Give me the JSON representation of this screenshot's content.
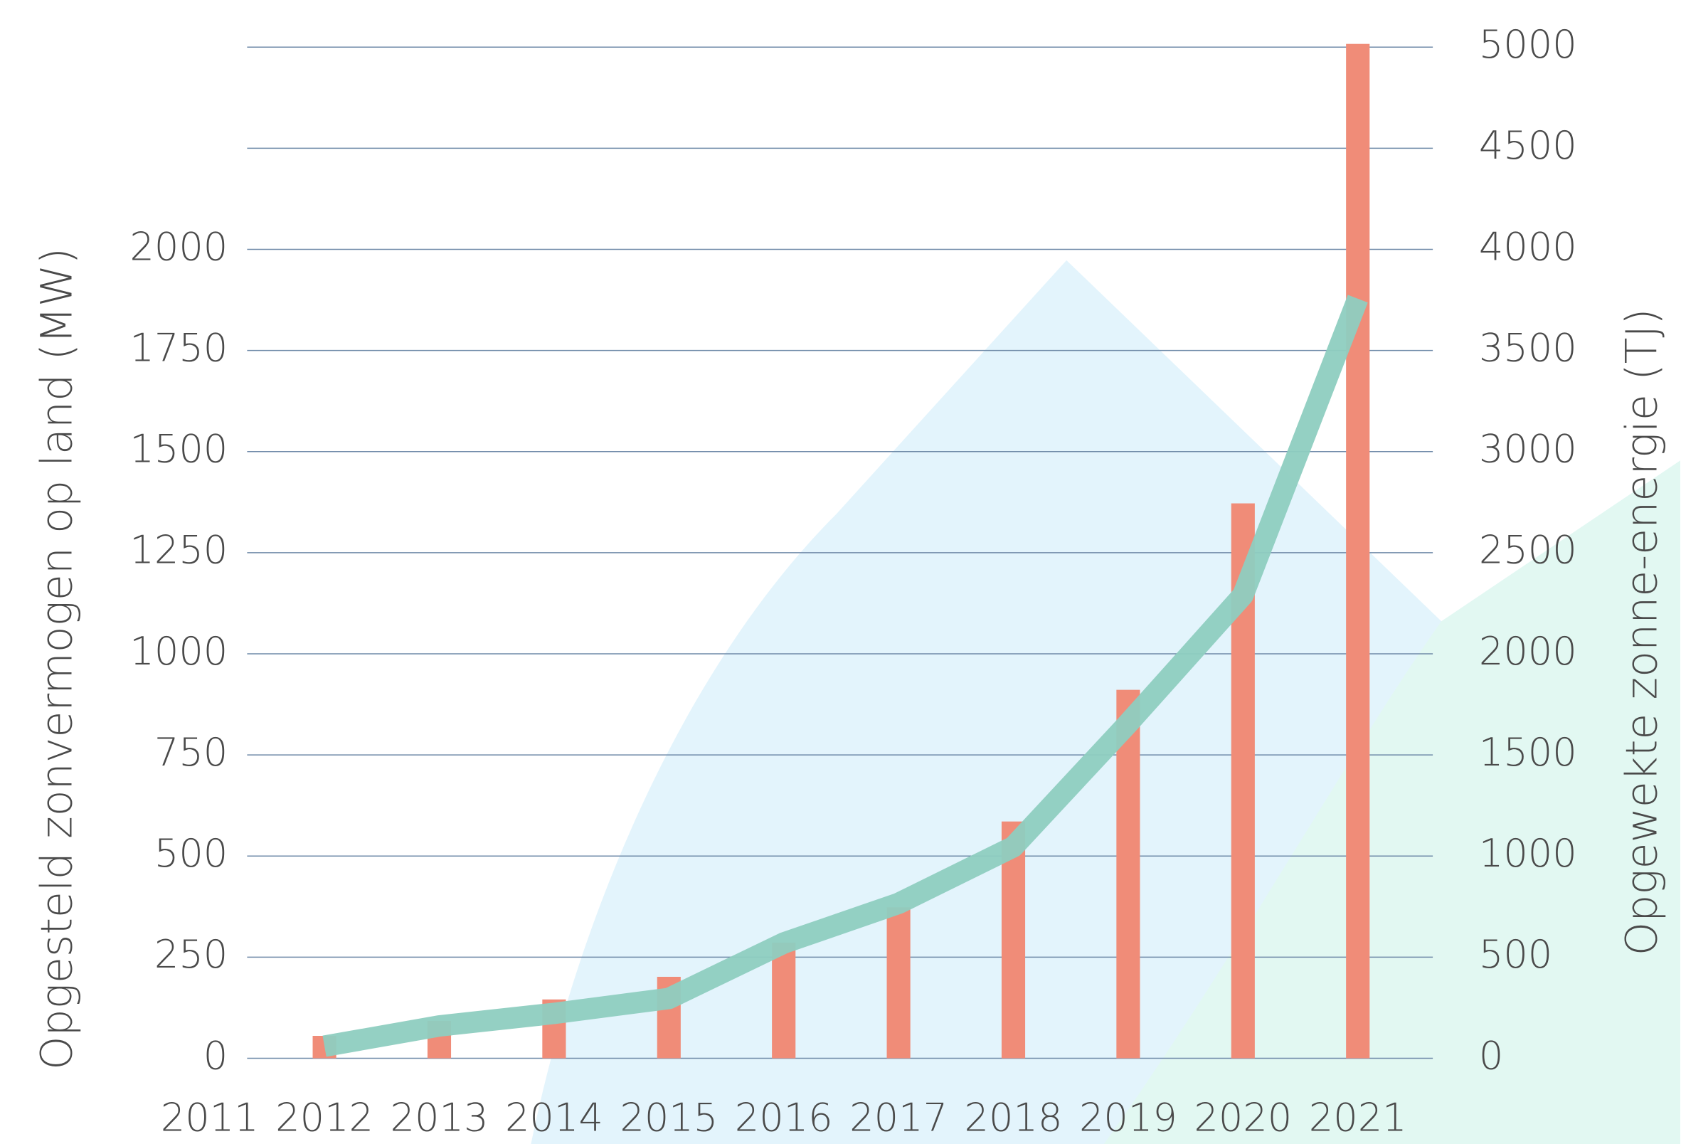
{
  "chart_data": {
    "type": "bar_line",
    "y_label": "Opgesteld zonvermogen op land (MW)",
    "y2_label": "Opgewekte  zonne-energie  (TJ)",
    "categories": [
      "2011",
      "2012",
      "2013",
      "2014",
      "2015",
      "2016",
      "2017",
      "2018",
      "2019",
      "2020",
      "2021"
    ],
    "ylim": [
      0,
      2500
    ],
    "yticks": [
      0,
      250,
      500,
      750,
      1000,
      1250,
      1500,
      1750,
      2000
    ],
    "y2lim": [
      0,
      5000
    ],
    "y2ticks": [
      0,
      500,
      1000,
      1500,
      2000,
      2500,
      3000,
      3500,
      4000,
      4500,
      5000
    ],
    "grid": true,
    "series": [
      {
        "type": "bar",
        "axis": "y2",
        "color": "#f08c78",
        "values": [
          null,
          111,
          185,
          291,
          403,
          572,
          747,
          1171,
          1822,
          2744,
          5016
        ]
      },
      {
        "type": "line",
        "axis": "y",
        "color": "#8ecdc0",
        "values": [
          null,
          30,
          80,
          111,
          148,
          285,
          383,
          523,
          828,
          1145,
          1878
        ]
      }
    ]
  }
}
